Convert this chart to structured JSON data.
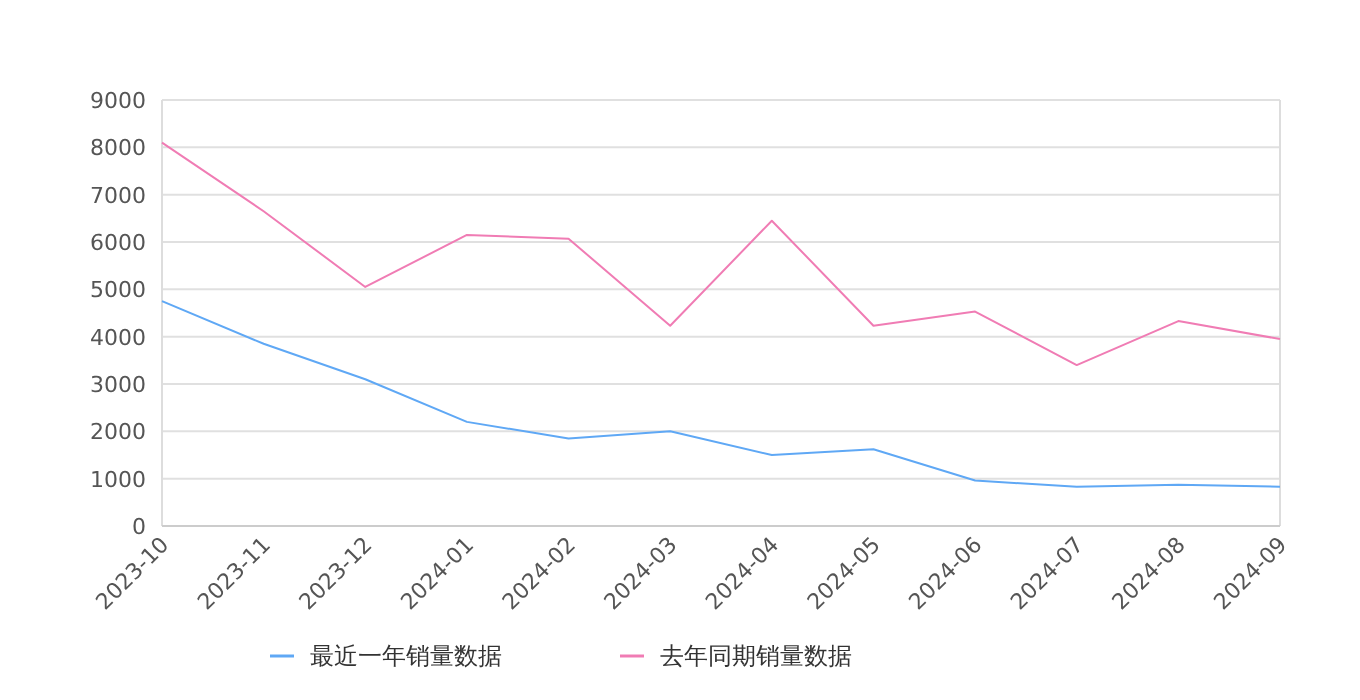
{
  "chart_data": {
    "type": "line",
    "categories": [
      "2023-10",
      "2023-11",
      "2023-12",
      "2024-01",
      "2024-02",
      "2024-03",
      "2024-04",
      "2024-05",
      "2024-06",
      "2024-07",
      "2024-08",
      "2024-09"
    ],
    "series": [
      {
        "name": "最近一年销量数据",
        "color": "#5fa8f5",
        "values": [
          4750,
          3850,
          3100,
          2200,
          1850,
          2000,
          1500,
          1620,
          960,
          830,
          870,
          830
        ]
      },
      {
        "name": "去年同期销量数据",
        "color": "#f07cb4",
        "values": [
          8100,
          6650,
          5050,
          6150,
          6070,
          4230,
          6450,
          4230,
          4530,
          3400,
          4330,
          3950
        ]
      }
    ],
    "ylim": [
      0,
      9000
    ],
    "yticks": [
      0,
      1000,
      2000,
      3000,
      4000,
      5000,
      6000,
      7000,
      8000,
      9000
    ],
    "grid": "y",
    "legend": "bottom",
    "marker": "none",
    "line_style": "solid"
  }
}
